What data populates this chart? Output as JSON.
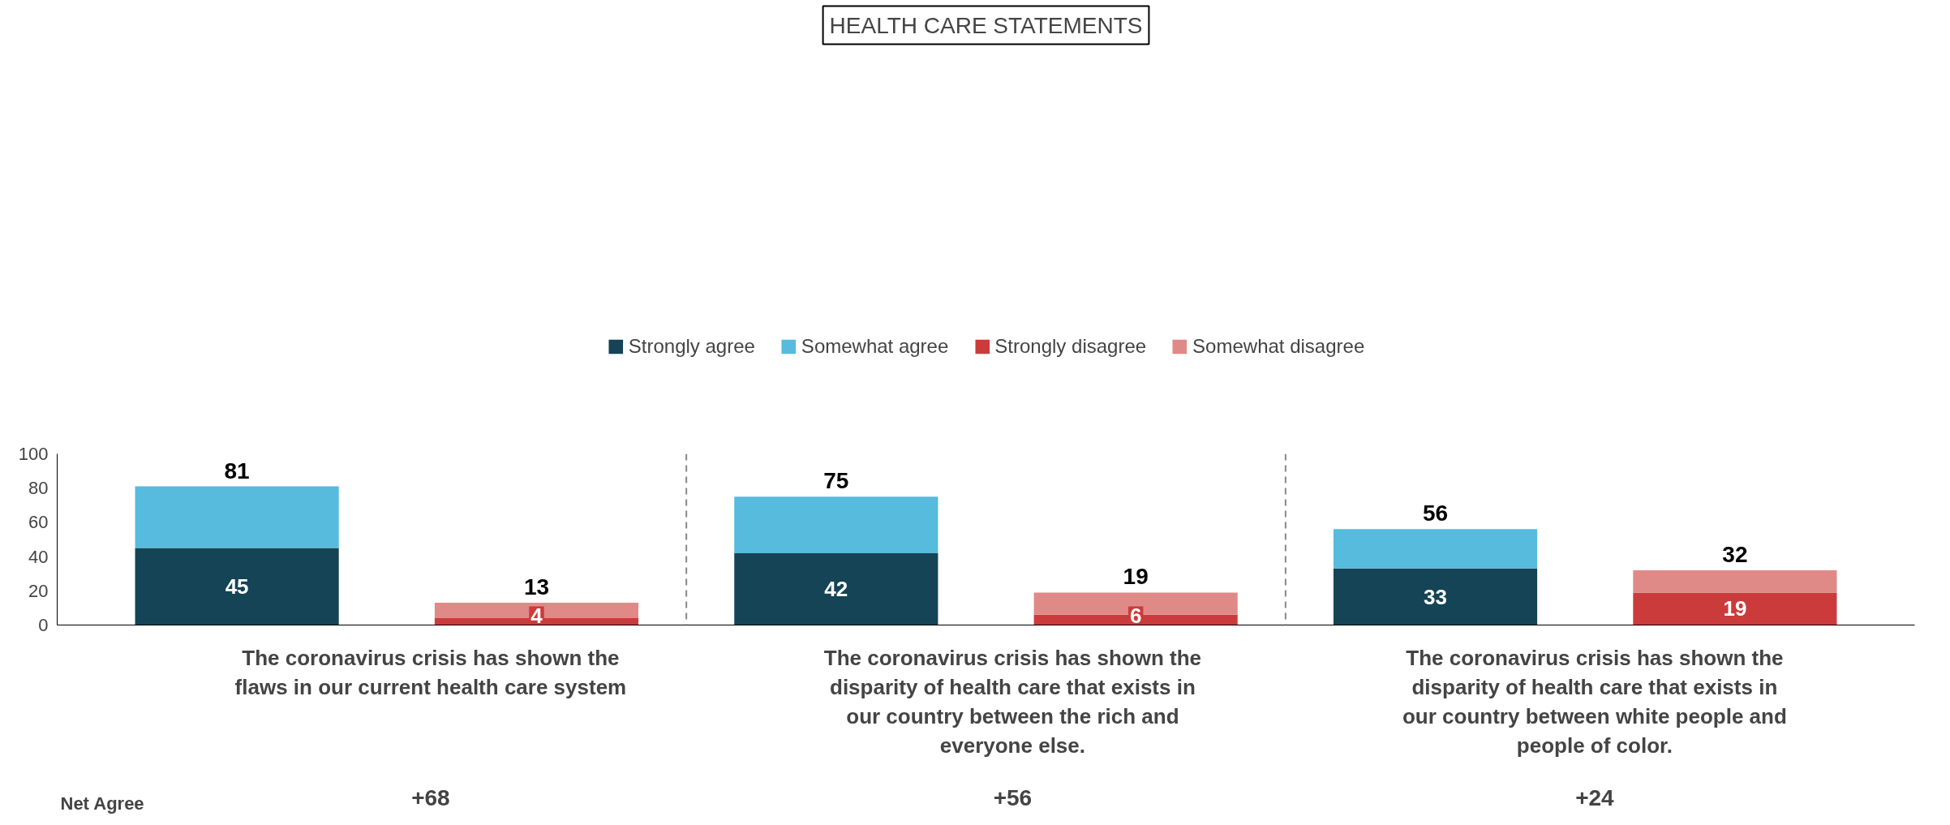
{
  "chart_data": {
    "type": "bar",
    "title": "HEALTH CARE STATEMENTS",
    "stacked": true,
    "categories": [
      null,
      null,
      null,
      null,
      null,
      null
    ],
    "series": [
      {
        "name": "Strongly agree",
        "color": "#144455",
        "values": [
          45,
          null,
          42,
          null,
          33,
          null
        ],
        "value_labels": [
          "45",
          null,
          "42",
          null,
          "33",
          null
        ]
      },
      {
        "name": "Somewhat agree",
        "color": "#56bbdd",
        "values": [
          36,
          null,
          33,
          null,
          23,
          null
        ]
      },
      {
        "name": "Strongly disagree",
        "color": "#cc3b3b",
        "values": [
          null,
          4,
          null,
          6,
          null,
          19
        ],
        "value_labels": [
          null,
          "4",
          null,
          "6",
          null,
          "19"
        ]
      },
      {
        "name": "Somewhat disagree",
        "color": "#e08a87",
        "values": [
          null,
          9,
          null,
          13,
          null,
          13
        ]
      }
    ],
    "totals": [
      "81",
      "13",
      "75",
      "19",
      "56",
      "32"
    ],
    "ylim": [
      0,
      100
    ],
    "yticks": [
      0,
      20,
      40,
      60,
      80,
      100
    ],
    "grid": false,
    "legend": "top",
    "annotations": [
      "The coronavirus crisis has shown the flaws in our current health care system",
      "The coronavirus crisis has shown the disparity of health care that exists in our country between the rich and everyone else.",
      "The coronavirus crisis has shown the disparity of health care that exists in our country between white people and people of color.",
      "Net Agree",
      "+68",
      "+56",
      "+24"
    ]
  }
}
